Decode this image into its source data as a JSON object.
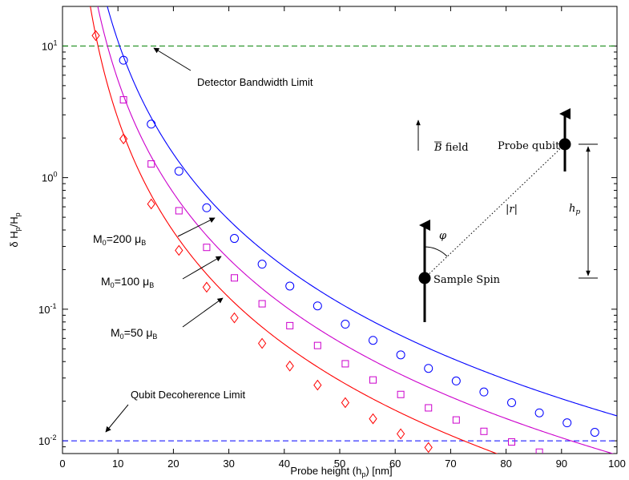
{
  "chart_data": {
    "type": "line",
    "title": "",
    "xlabel": "Probe height (h_p) [nm]",
    "ylabel": "δ H_p/H_p",
    "xlim": [
      0,
      100
    ],
    "ylim": [
      0.008,
      20
    ],
    "yscale": "log",
    "grid": false,
    "x_ticks": [
      0,
      10,
      20,
      30,
      40,
      50,
      60,
      70,
      80,
      90,
      100
    ],
    "y_ticks": [
      0.01,
      0.1,
      1,
      10
    ],
    "series": [
      {
        "name": "M0=200 μB",
        "color": "#0000ff",
        "marker": "circle",
        "curve": {
          "A": 7685,
          "n": 2.848
        },
        "x": [
          11,
          16,
          21,
          26,
          31,
          36,
          41,
          46,
          51,
          56,
          61,
          66,
          71,
          76,
          81,
          86,
          91,
          96
        ],
        "values": [
          7.8,
          2.55,
          1.12,
          0.59,
          0.345,
          0.22,
          0.15,
          0.106,
          0.077,
          0.058,
          0.045,
          0.0355,
          0.0285,
          0.0235,
          0.0195,
          0.0163,
          0.0137,
          0.0116
        ]
      },
      {
        "name": "M0=100 μB",
        "color": "#cc00cc",
        "marker": "square",
        "curve": {
          "A": 3883,
          "n": 2.848
        },
        "x": [
          11,
          16,
          21,
          26,
          31,
          36,
          41,
          46,
          51,
          56,
          61,
          66,
          71,
          76,
          81,
          86
        ],
        "values": [
          3.9,
          1.27,
          0.56,
          0.295,
          0.173,
          0.11,
          0.075,
          0.053,
          0.0385,
          0.029,
          0.0225,
          0.0178,
          0.0144,
          0.0118,
          0.0098,
          0.0082
        ]
      },
      {
        "name": "M0=50 μB",
        "color": "#ff0000",
        "marker": "diamond",
        "curve": {
          "A": 1979,
          "n": 2.848
        },
        "x": [
          6,
          11,
          16,
          21,
          26,
          31,
          36,
          41,
          46,
          51,
          56,
          61,
          66
        ],
        "values": [
          12.0,
          1.97,
          0.63,
          0.28,
          0.147,
          0.086,
          0.055,
          0.037,
          0.0265,
          0.0195,
          0.0147,
          0.0113,
          0.0089
        ]
      }
    ],
    "reference_lines": [
      {
        "name": "Detector Bandwidth Limit",
        "y": 10,
        "color": "#008000",
        "style": "dashed"
      },
      {
        "name": "Qubit Decoherence Limit",
        "y": 0.01,
        "color": "#0000ff",
        "style": "dashed"
      }
    ],
    "annotations": [
      {
        "text": "Detector Bandwidth Limit"
      },
      {
        "text": "Qubit Decoherence Limit"
      },
      {
        "text": "M0=200 μB"
      },
      {
        "text": "M0=100 μB"
      },
      {
        "text": "M0=50 μB"
      }
    ]
  },
  "labels": {
    "xlabel_main": "Probe height (h",
    "xlabel_sub": "p",
    "xlabel_end": ") [nm]",
    "ylabel_delta": "δ H",
    "ylabel_sub1": "p",
    "ylabel_slash": "/H",
    "ylabel_sub2": "p",
    "detector_limit": "Detector Bandwidth Limit",
    "qubit_limit": "Qubit Decoherence Limit",
    "m200_pre": "M",
    "m200_sub": "0",
    "m200_val": "=200 μ",
    "m200_unit": "B",
    "m100_pre": "M",
    "m100_sub": "0",
    "m100_val": "=100 μ",
    "m100_unit": "B",
    "m50_pre": "M",
    "m50_sub": "0",
    "m50_val": "=50 μ",
    "m50_unit": "B"
  },
  "inset": {
    "b_field_vec": "B",
    "b_field_text": " field",
    "probe_qubit": "Probe qubit",
    "sample_spin": "Sample Spin",
    "phi": "φ",
    "r_label": "|r|",
    "hp_main": "h",
    "hp_sub": "p"
  }
}
